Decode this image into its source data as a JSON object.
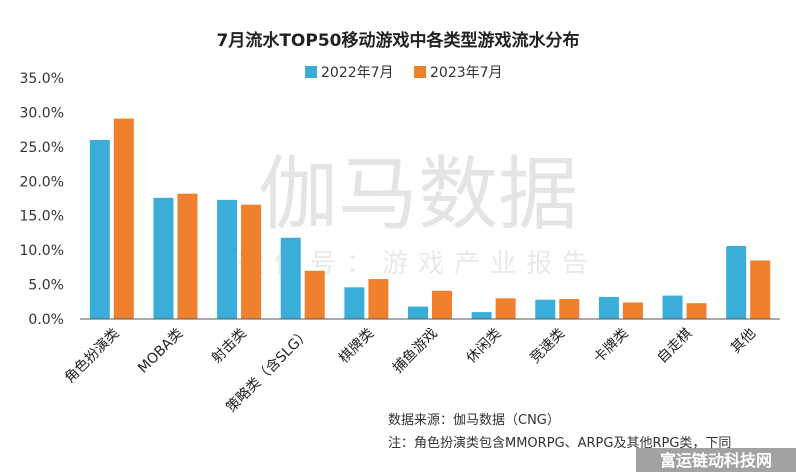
{
  "chart_data": {
    "type": "bar",
    "title": "7月流水TOP50移动游戏中各类型游戏流水分布",
    "categories": [
      "角色扮演类",
      "MOBA类",
      "射击类",
      "策略类（含SLG）",
      "棋牌类",
      "捕鱼游戏",
      "休闲类",
      "竞速类",
      "卡牌类",
      "自走棋",
      "其他"
    ],
    "series": [
      {
        "name": "2022年7月",
        "color": "#3aaed8",
        "values": [
          26.0,
          17.6,
          17.3,
          11.8,
          4.6,
          1.8,
          1.0,
          2.8,
          3.2,
          3.4,
          10.6
        ]
      },
      {
        "name": "2023年7月",
        "color": "#f07f2e",
        "values": [
          29.1,
          18.2,
          16.6,
          7.0,
          5.8,
          4.1,
          3.0,
          2.9,
          2.4,
          2.3,
          8.5
        ]
      }
    ],
    "ylim": [
      0,
      35
    ],
    "yticks": [
      "0.0%",
      "5.0%",
      "10.0%",
      "15.0%",
      "20.0%",
      "25.0%",
      "30.0%",
      "35.0%"
    ],
    "legend_position": "top-center",
    "grid": false
  },
  "watermark": {
    "main": "伽马数据",
    "sub": "微信号：游戏产业报告"
  },
  "notes": {
    "source": "数据来源：伽马数据（CNG）",
    "footnote": "注：角色扮演类包含MMORPG、ARPG及其他RPG类，下同"
  },
  "corner_badge": "富运链动科技网"
}
